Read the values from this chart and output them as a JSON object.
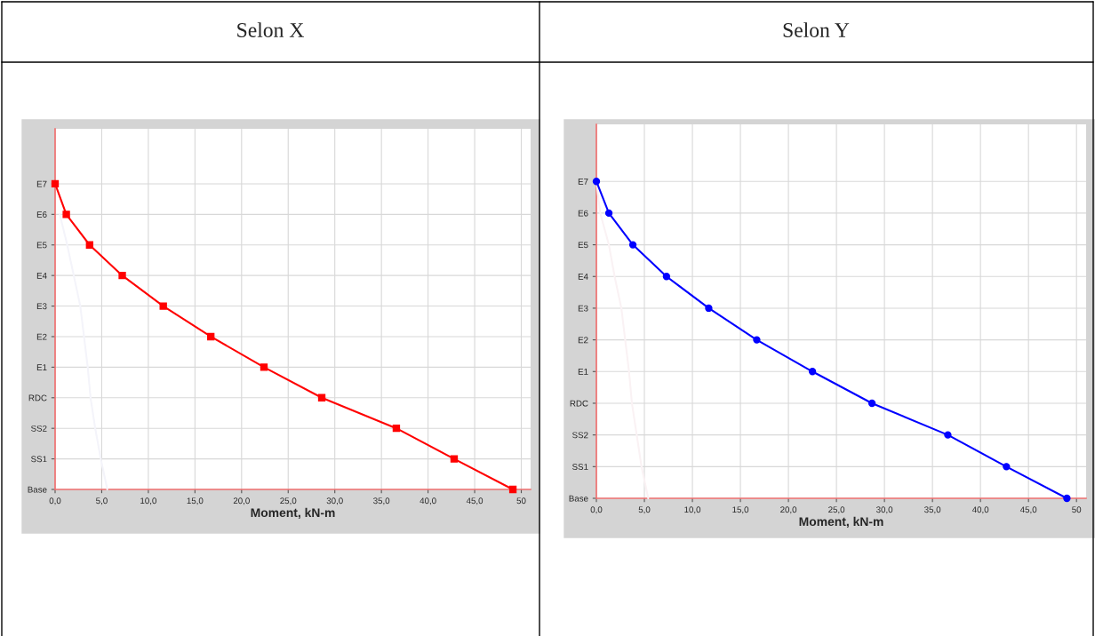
{
  "chart_data": [
    {
      "type": "line",
      "orientation": "horizontal",
      "title": "Selon X",
      "xlabel": "Moment, kN-m",
      "xlim": [
        0,
        51
      ],
      "xticks": [
        {
          "value": 0,
          "label": "0,0"
        },
        {
          "value": 5,
          "label": "5,0"
        },
        {
          "value": 10,
          "label": "10,0"
        },
        {
          "value": 15,
          "label": "15,0"
        },
        {
          "value": 20,
          "label": "20,0"
        },
        {
          "value": 25,
          "label": "25,0"
        },
        {
          "value": 30,
          "label": "30,0"
        },
        {
          "value": 35,
          "label": "35,0"
        },
        {
          "value": 40,
          "label": "40,0"
        },
        {
          "value": 45,
          "label": "45,0"
        },
        {
          "value": 50,
          "label": "50"
        }
      ],
      "categories": [
        "E7",
        "E6",
        "E5",
        "E4",
        "E3",
        "E2",
        "E1",
        "RDC",
        "SS2",
        "SS1",
        "Base"
      ],
      "grid": true,
      "marker": "square",
      "series": [
        {
          "color": "#f4f4fa",
          "marker": "none",
          "values": [
            null,
            0.5,
            1.3,
            2.0,
            2.7,
            3.1,
            3.5,
            3.8,
            4.3,
            4.9,
            5.6
          ]
        },
        {
          "color": "#ff0000",
          "values": [
            0,
            1.2,
            3.7,
            7.2,
            11.6,
            16.7,
            22.4,
            28.6,
            36.6,
            42.8,
            49.1
          ]
        }
      ]
    },
    {
      "type": "line",
      "orientation": "horizontal",
      "title": "Selon Y",
      "xlabel": "Moment, kN-m",
      "xlim": [
        0,
        51
      ],
      "xticks": [
        {
          "value": 0,
          "label": "0,0"
        },
        {
          "value": 5,
          "label": "5,0"
        },
        {
          "value": 10,
          "label": "10,0"
        },
        {
          "value": 15,
          "label": "15,0"
        },
        {
          "value": 20,
          "label": "20,0"
        },
        {
          "value": 25,
          "label": "25,0"
        },
        {
          "value": 30,
          "label": "30,0"
        },
        {
          "value": 35,
          "label": "35,0"
        },
        {
          "value": 40,
          "label": "40,0"
        },
        {
          "value": 45,
          "label": "45,0"
        },
        {
          "value": 50,
          "label": "50"
        }
      ],
      "categories": [
        "E7",
        "E6",
        "E5",
        "E4",
        "E3",
        "E2",
        "E1",
        "RDC",
        "SS2",
        "SS1",
        "Base"
      ],
      "grid": true,
      "marker": "circle",
      "series": [
        {
          "color": "#faf2f4",
          "marker": "none",
          "values": [
            0,
            0.4,
            1.3,
            1.9,
            2.6,
            3.0,
            3.4,
            3.7,
            4.2,
            4.7,
            5.4
          ]
        },
        {
          "color": "#0000ff",
          "values": [
            0,
            1.3,
            3.8,
            7.3,
            11.7,
            16.7,
            22.5,
            28.7,
            36.6,
            42.7,
            49.0
          ]
        }
      ]
    }
  ]
}
